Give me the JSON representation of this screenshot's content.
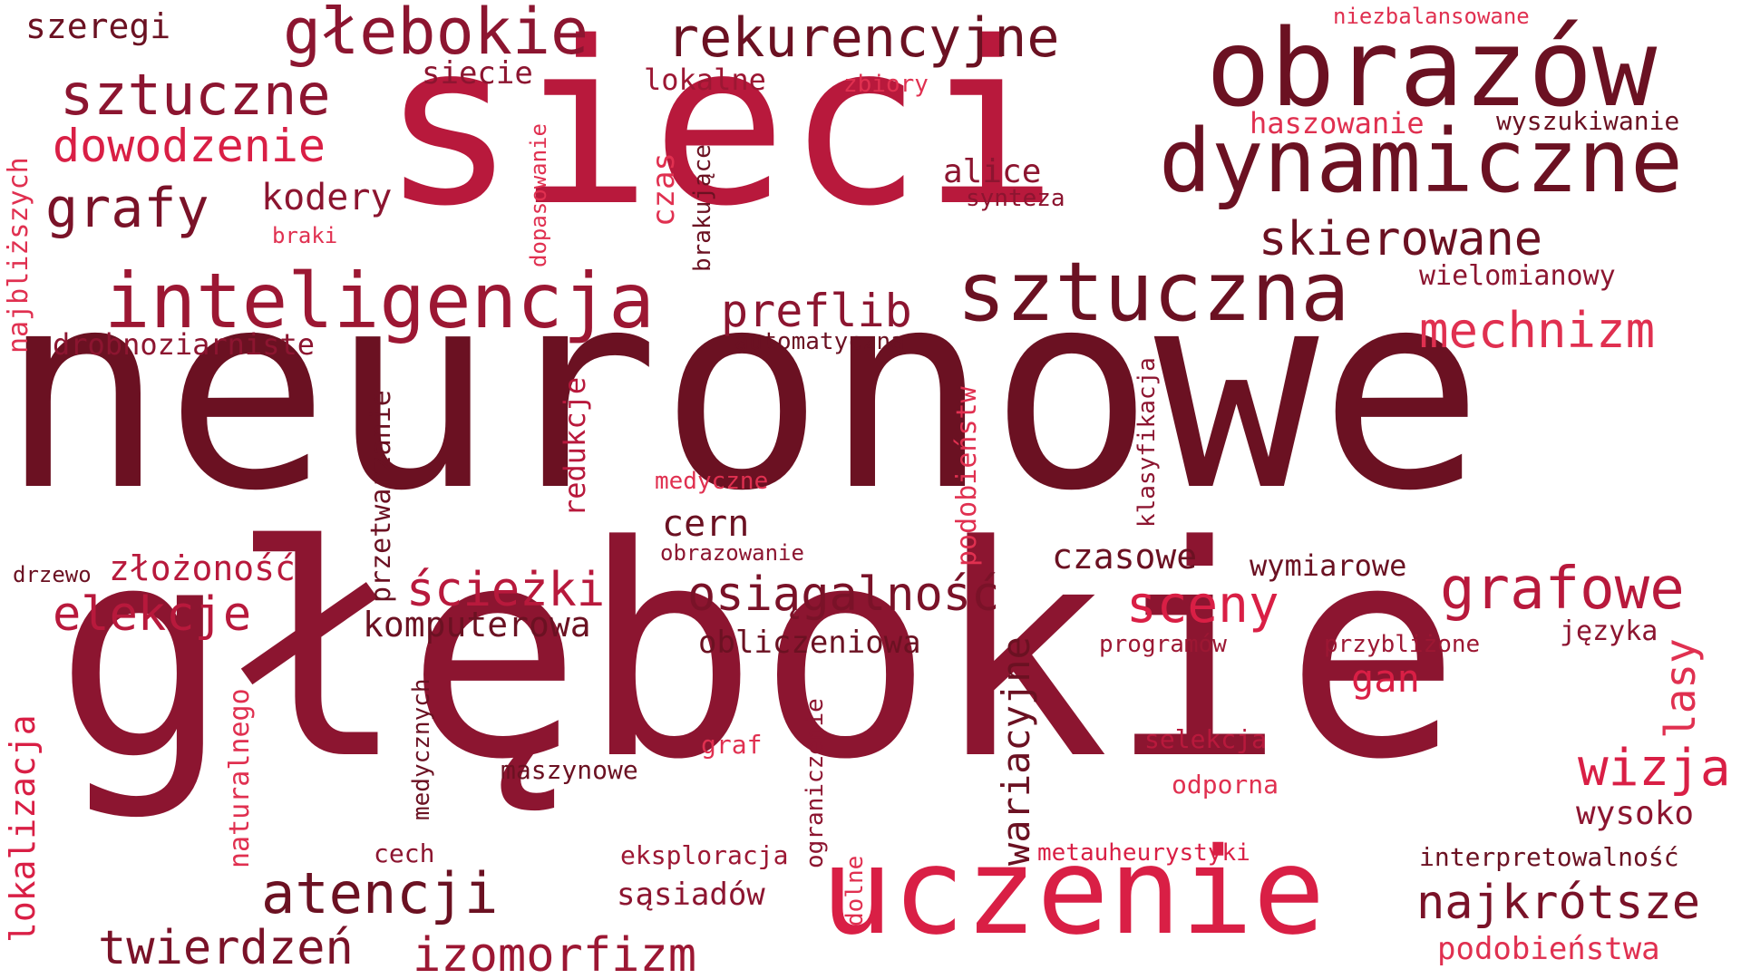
{
  "palette": {
    "dark": "#6b1122",
    "deep": "#7a1228",
    "mid": "#8c1530",
    "crimson": "#9c1733",
    "red": "#b8193c",
    "bright": "#d91f45",
    "pink": "#e03050"
  },
  "words": [
    {
      "id": "w-neuronowe",
      "text": "neuronowe",
      "color": "#6b1122"
    },
    {
      "id": "w-glebokie-big",
      "text": "głębokie",
      "color": "#8c1530"
    },
    {
      "id": "w-sieci",
      "text": "sieci",
      "color": "#b8193c"
    },
    {
      "id": "w-obrazow",
      "text": "obrazów",
      "color": "#6b1122"
    },
    {
      "id": "w-uczenie",
      "text": "uczenie",
      "color": "#d91f45"
    },
    {
      "id": "w-dynamiczne",
      "text": "dynamiczne",
      "color": "#6b1122"
    },
    {
      "id": "w-sztuczna",
      "text": "sztuczna",
      "color": "#6b1122"
    },
    {
      "id": "w-inteligencja",
      "text": "inteligencja",
      "color": "#9c1733"
    },
    {
      "id": "w-glebokie-small",
      "text": "głebokie",
      "color": "#8c1530"
    },
    {
      "id": "w-rekurencyjne",
      "text": "rekurencyjne",
      "color": "#6b1122"
    },
    {
      "id": "w-sztuczne",
      "text": "sztuczne",
      "color": "#8c1530"
    },
    {
      "id": "w-dowodzenie",
      "text": "dowodzenie",
      "color": "#d91f45"
    },
    {
      "id": "w-grafy",
      "text": "grafy",
      "color": "#7a1228"
    },
    {
      "id": "w-kodery",
      "text": "kodery",
      "color": "#8c1530"
    },
    {
      "id": "w-szeregi",
      "text": "szeregi",
      "color": "#6b1122"
    },
    {
      "id": "w-siecie",
      "text": "siecie",
      "color": "#8c1530"
    },
    {
      "id": "w-lokalne",
      "text": "lokalne",
      "color": "#9c1733"
    },
    {
      "id": "w-zbiory",
      "text": "zbiory",
      "color": "#e03050"
    },
    {
      "id": "w-niezbalansowane",
      "text": "niezbalansowane",
      "color": "#e03050"
    },
    {
      "id": "w-haszowanie",
      "text": "haszowanie",
      "color": "#e03050"
    },
    {
      "id": "w-wyszukiwanie",
      "text": "wyszukiwanie",
      "color": "#6b1122"
    },
    {
      "id": "w-skierowane",
      "text": "skierowane",
      "color": "#6b1122"
    },
    {
      "id": "w-wielomianowy",
      "text": "wielomianowy",
      "color": "#8c1530"
    },
    {
      "id": "w-mechnizm",
      "text": "mechnizm",
      "color": "#e03050"
    },
    {
      "id": "w-alice",
      "text": "alice",
      "color": "#8c1530"
    },
    {
      "id": "w-synteza",
      "text": "synteza",
      "color": "#8c1530"
    },
    {
      "id": "w-preflib",
      "text": "preflib",
      "color": "#8c1530"
    },
    {
      "id": "w-automatyczna",
      "text": "automatyczna",
      "color": "#6b1122"
    },
    {
      "id": "w-braki",
      "text": "braki",
      "color": "#e03050"
    },
    {
      "id": "w-drobnoziarniste",
      "text": "drobnoziarniste",
      "color": "#8c1530"
    },
    {
      "id": "w-najblizszych",
      "text": "najbliższych",
      "color": "#e03050"
    },
    {
      "id": "w-dopasowanie",
      "text": "dopasowanie",
      "color": "#e03050"
    },
    {
      "id": "w-czas",
      "text": "czas",
      "color": "#e03050"
    },
    {
      "id": "w-brakujace",
      "text": "brakujące",
      "color": "#6b1122"
    },
    {
      "id": "w-redukcje",
      "text": "redukcje",
      "color": "#b8193c"
    },
    {
      "id": "w-przetwarzanie",
      "text": "przetwarzanie",
      "color": "#6b1122"
    },
    {
      "id": "w-medyczne",
      "text": "medyczne",
      "color": "#e03050"
    },
    {
      "id": "w-cern",
      "text": "cern",
      "color": "#6b1122"
    },
    {
      "id": "w-obrazowanie",
      "text": "obrazowanie",
      "color": "#8c1530"
    },
    {
      "id": "w-podobienstw",
      "text": "podobieństw",
      "color": "#e03050"
    },
    {
      "id": "w-klasyfikacja",
      "text": "klasyfikacja",
      "color": "#8c1530"
    },
    {
      "id": "w-drzewo",
      "text": "drzewo",
      "color": "#6b1122"
    },
    {
      "id": "w-zlozonosc",
      "text": "złożoność",
      "color": "#b8193c"
    },
    {
      "id": "w-elekcje",
      "text": "elekcje",
      "color": "#b8193c"
    },
    {
      "id": "w-sciezki",
      "text": "ścieżki",
      "color": "#b8193c"
    },
    {
      "id": "w-osiagalnosc",
      "text": "osiągalność",
      "color": "#7a1228"
    },
    {
      "id": "w-czasowe",
      "text": "czasowe",
      "color": "#6b1122"
    },
    {
      "id": "w-wymiarowe",
      "text": "wymiarowe",
      "color": "#6b1122"
    },
    {
      "id": "w-grafowe",
      "text": "grafowe",
      "color": "#b8193c"
    },
    {
      "id": "w-sceny",
      "text": "sceny",
      "color": "#d91f45"
    },
    {
      "id": "w-komputerowa",
      "text": "komputerowa",
      "color": "#6b1122"
    },
    {
      "id": "w-obliczeniowa",
      "text": "obliczeniowa",
      "color": "#6b1122"
    },
    {
      "id": "w-programow",
      "text": "programów",
      "color": "#9c1733"
    },
    {
      "id": "w-przyblizone",
      "text": "przybliżone",
      "color": "#9c1733"
    },
    {
      "id": "w-jezyka",
      "text": "języka",
      "color": "#8c1530"
    },
    {
      "id": "w-gan",
      "text": "gan",
      "color": "#d91f45"
    },
    {
      "id": "w-lasy",
      "text": "lasy",
      "color": "#e03050"
    },
    {
      "id": "w-wariacyjne",
      "text": "wariacyjne",
      "color": "#6b1122"
    },
    {
      "id": "w-lokalizacja",
      "text": "lokalizacja",
      "color": "#d91f45"
    },
    {
      "id": "w-naturalnego",
      "text": "naturalnego",
      "color": "#e03050"
    },
    {
      "id": "w-medycznych",
      "text": "medycznych",
      "color": "#6b1122"
    },
    {
      "id": "w-ograniczenie",
      "text": "ograniczenie",
      "color": "#8c1530"
    },
    {
      "id": "w-graf",
      "text": "graf",
      "color": "#e03050"
    },
    {
      "id": "w-selekcja",
      "text": "selekcja",
      "color": "#b8193c"
    },
    {
      "id": "w-odporna",
      "text": "odporna",
      "color": "#e03050"
    },
    {
      "id": "w-wizja",
      "text": "wizja",
      "color": "#d91f45"
    },
    {
      "id": "w-wysoko",
      "text": "wysoko",
      "color": "#8c1530"
    },
    {
      "id": "w-maszynowe",
      "text": "maszynowe",
      "color": "#6b1122"
    },
    {
      "id": "w-atencji",
      "text": "atencji",
      "color": "#6b1122"
    },
    {
      "id": "w-cech",
      "text": "cech",
      "color": "#8c1530"
    },
    {
      "id": "w-eksploracja",
      "text": "eksploracja",
      "color": "#9c1733"
    },
    {
      "id": "w-dolne",
      "text": "dolne",
      "color": "#e03050"
    },
    {
      "id": "w-metauheurystyki",
      "text": "metauheurystyki",
      "color": "#d91f45"
    },
    {
      "id": "w-interpretowalnosc",
      "text": "interpretowalność",
      "color": "#6b1122"
    },
    {
      "id": "w-sasiadow",
      "text": "sąsiadów",
      "color": "#8c1530"
    },
    {
      "id": "w-najkrotsze",
      "text": "najkrótsze",
      "color": "#7a1228"
    },
    {
      "id": "w-twierdzen",
      "text": "twierdzeń",
      "color": "#7a1228"
    },
    {
      "id": "w-izomorfizm",
      "text": "izomorfizm",
      "color": "#9c1733"
    },
    {
      "id": "w-podobienstwa",
      "text": "podobieństwa",
      "color": "#e03050"
    }
  ]
}
